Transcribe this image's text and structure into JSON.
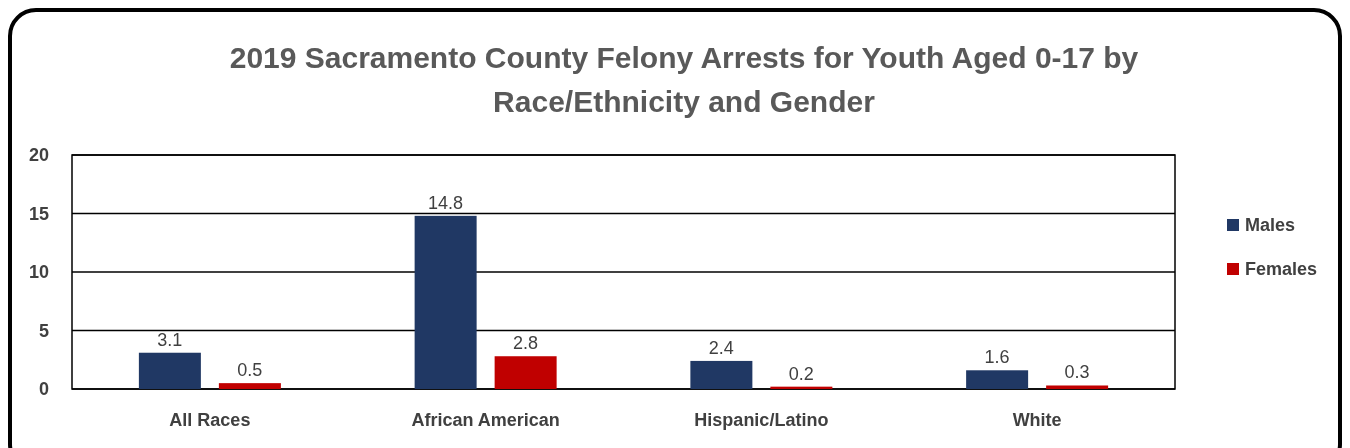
{
  "chart_data": {
    "type": "bar",
    "title": "2019 Sacramento County Felony Arrests for Youth Aged 0-17 by Race/Ethnicity and Gender",
    "categories": [
      "All Races",
      "African American",
      "Hispanic/Latino",
      "White"
    ],
    "series": [
      {
        "name": "Males",
        "color": "#203864",
        "values": [
          3.1,
          14.8,
          2.4,
          1.6
        ]
      },
      {
        "name": "Females",
        "color": "#c00000",
        "values": [
          0.5,
          2.8,
          0.2,
          0.3
        ]
      }
    ],
    "ylim": [
      0,
      20
    ],
    "yticks": [
      0,
      5,
      10,
      15,
      20
    ],
    "grid": "y",
    "legend": "right",
    "data_labels": true
  }
}
